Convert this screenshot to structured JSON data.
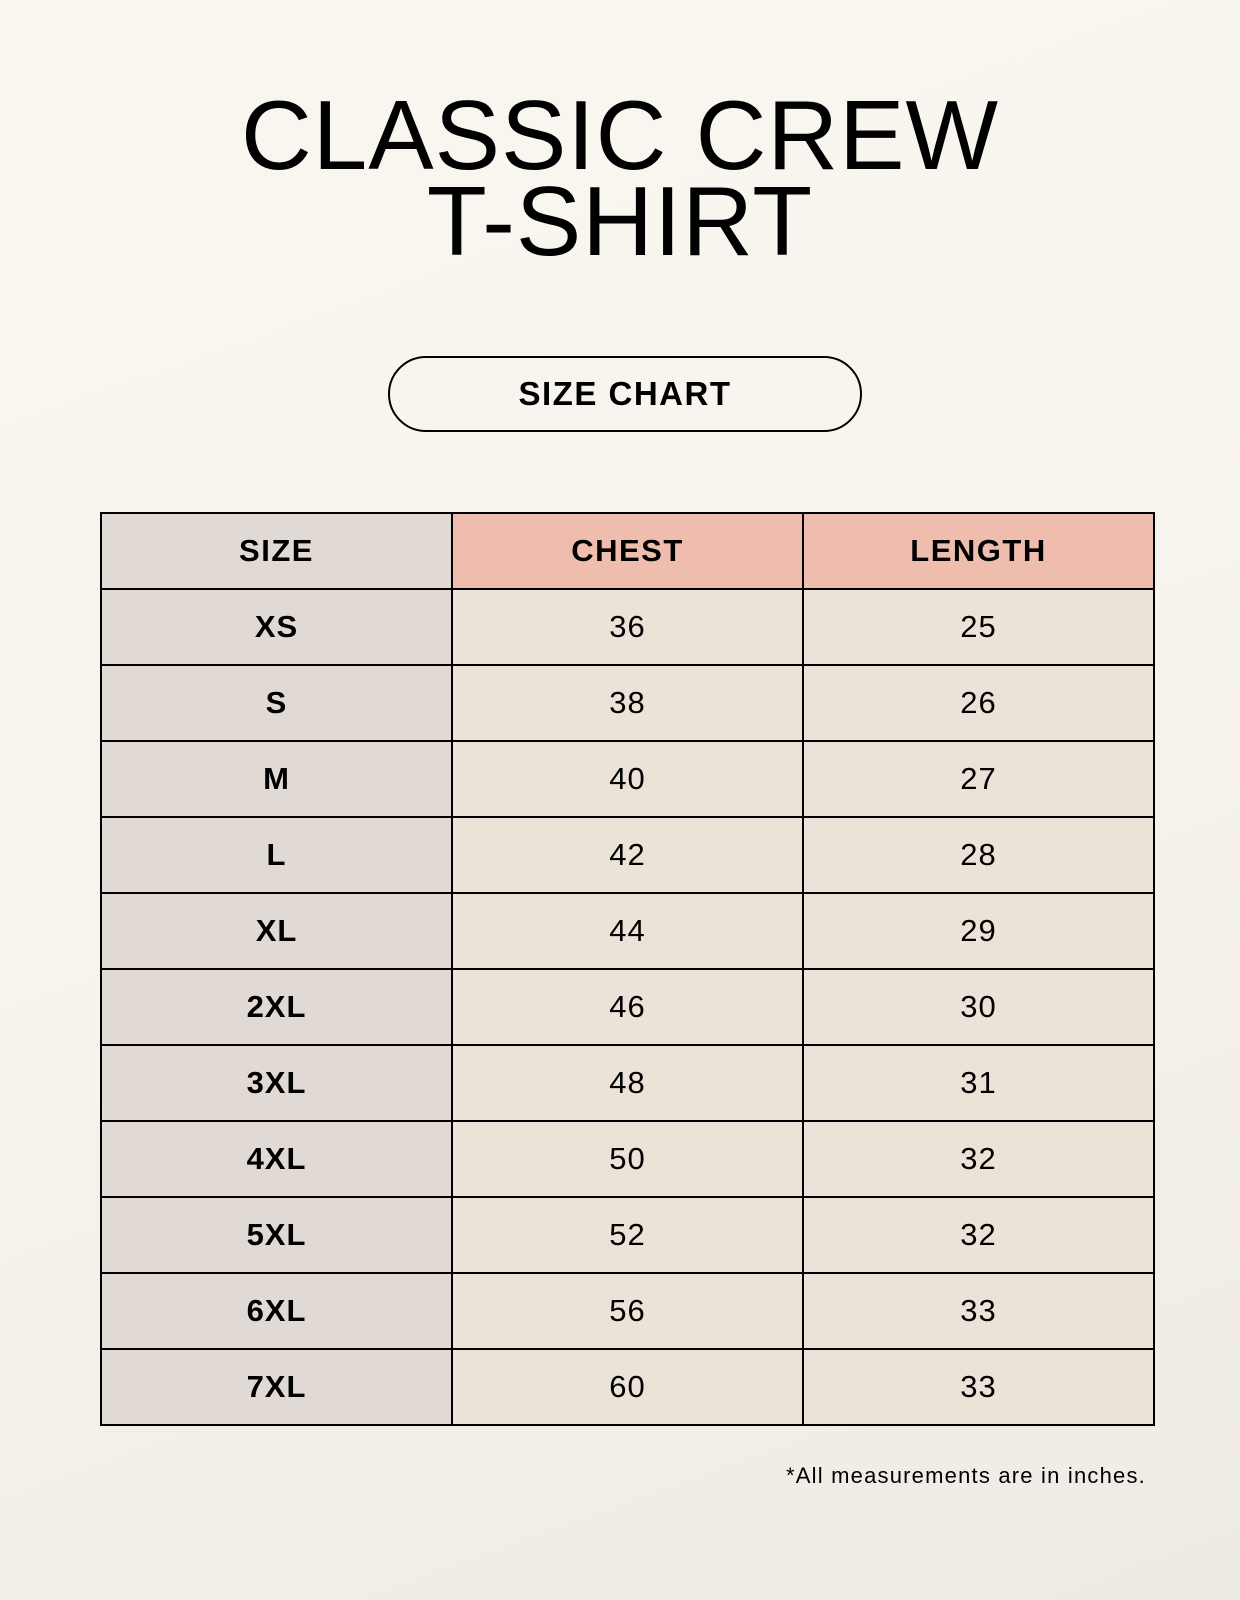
{
  "title": {
    "line1": "CLASSIC CREW",
    "line2": "T-SHIRT"
  },
  "badge": "SIZE CHART",
  "table": {
    "headers": [
      "SIZE",
      "CHEST",
      "LENGTH"
    ],
    "rows": [
      [
        "XS",
        "36",
        "25"
      ],
      [
        "S",
        "38",
        "26"
      ],
      [
        "M",
        "40",
        "27"
      ],
      [
        "L",
        "42",
        "28"
      ],
      [
        "XL",
        "44",
        "29"
      ],
      [
        "2XL",
        "46",
        "30"
      ],
      [
        "3XL",
        "48",
        "31"
      ],
      [
        "4XL",
        "50",
        "32"
      ],
      [
        "5XL",
        "52",
        "32"
      ],
      [
        "6XL",
        "56",
        "33"
      ],
      [
        "7XL",
        "60",
        "33"
      ]
    ]
  },
  "footnote": "*All measurements are in inches.",
  "colors": {
    "size_column": "#e1d9d3",
    "header_accent": "#eebdae",
    "cell": "#ebe3d8"
  }
}
